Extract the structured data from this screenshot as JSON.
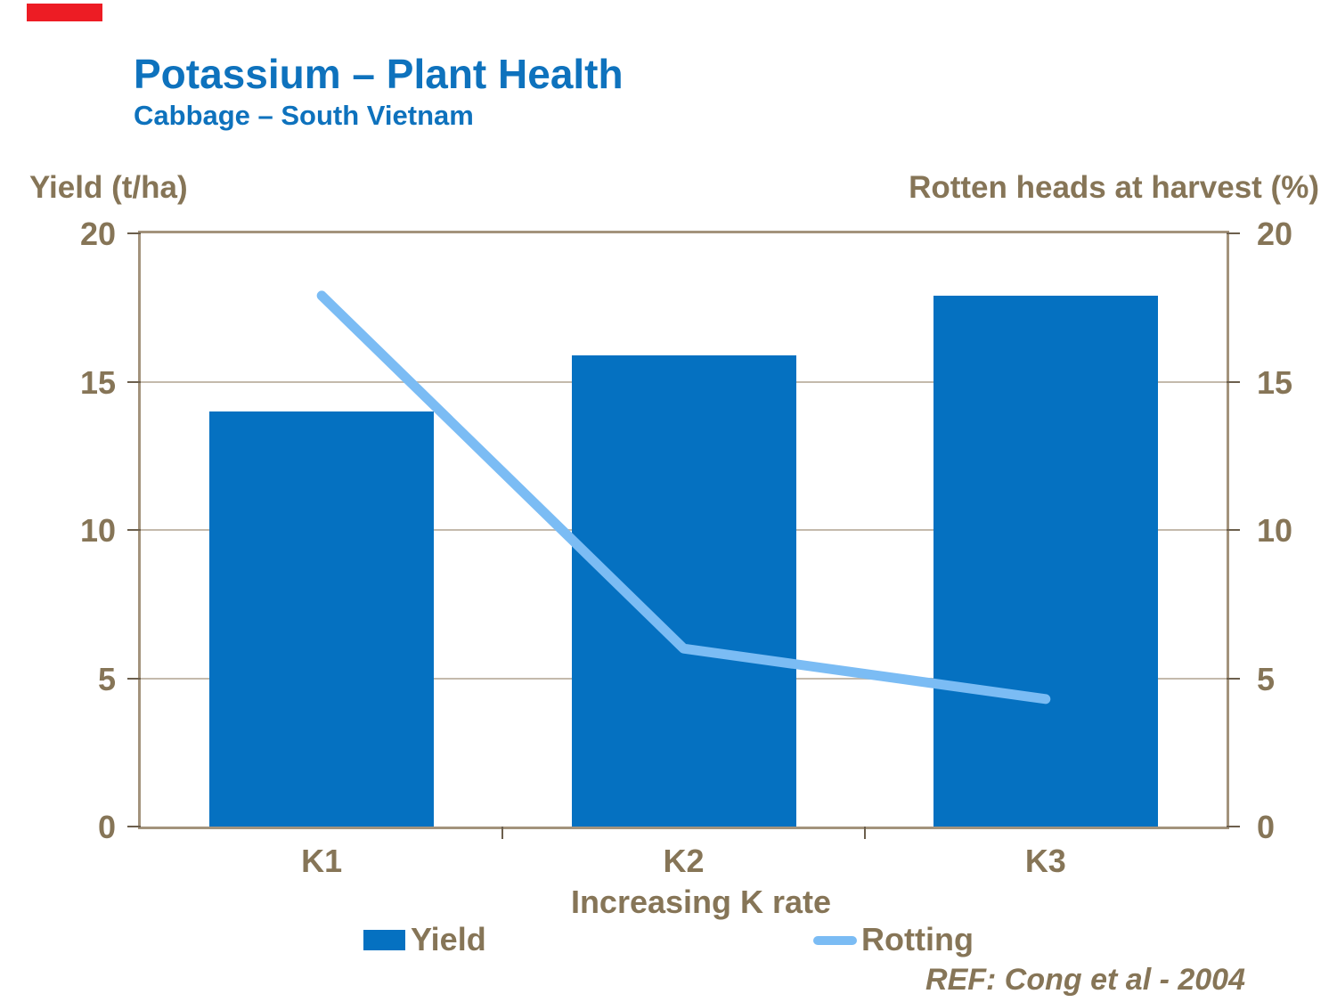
{
  "logo": {
    "color": "#ED1C24"
  },
  "header": {
    "title": "Potassium – Plant Health",
    "subtitle": "Cabbage – South Vietnam"
  },
  "chart_data": {
    "type": "bar",
    "subtype": "dual-axis bar + line",
    "categories": [
      "K1",
      "K2",
      "K3"
    ],
    "series": [
      {
        "name": "Yield",
        "type": "bar",
        "axis": "left",
        "values": [
          14.0,
          15.9,
          17.9
        ],
        "color": "#0571C1"
      },
      {
        "name": "Rotting",
        "type": "line",
        "axis": "right",
        "values": [
          17.9,
          6.0,
          4.3
        ],
        "color": "#7BBCF4"
      }
    ],
    "left_axis": {
      "label": "Yield (t/ha)",
      "ticks": [
        0,
        5,
        10,
        15,
        20
      ],
      "range": [
        0,
        20
      ]
    },
    "right_axis": {
      "label": "Rotten heads at harvest (%)",
      "ticks": [
        0,
        5,
        10,
        15,
        20
      ],
      "range": [
        0,
        20
      ]
    },
    "xlabel": "Increasing K rate",
    "grid": true,
    "legend_position": "bottom"
  },
  "legend": {
    "yield_label": "Yield",
    "rotting_label": "Rotting"
  },
  "footer": {
    "ref": "REF: Cong et al - 2004"
  },
  "colors": {
    "title_blue": "#0E72BD",
    "bar_blue": "#0571C1",
    "line_light_blue": "#7BBCF4",
    "text_brown": "#867557",
    "axis_tan": "#A3937C",
    "gridline_tan": "#C4BAAC",
    "logo_red": "#ED1C24"
  }
}
